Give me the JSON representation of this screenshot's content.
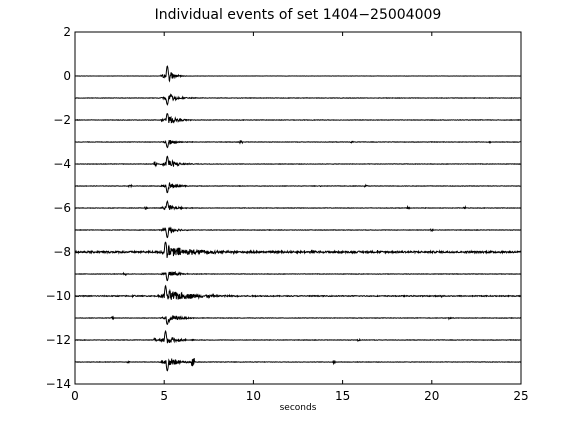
{
  "chart_data": {
    "type": "line",
    "title": "Individual events of set 1404−25004009",
    "xlabel": "seconds",
    "ylabel": "",
    "xlim": [
      0,
      25
    ],
    "ylim": [
      -14,
      2
    ],
    "x_ticks": [
      0,
      5,
      10,
      15,
      20,
      25
    ],
    "y_ticks": [
      2,
      0,
      -2,
      -4,
      -6,
      -8,
      -10,
      -12,
      -14
    ],
    "grid": false,
    "line_color": "#000000",
    "traces": [
      {
        "offset": 0,
        "duration": 25,
        "onset": 5.1,
        "peak": 0.45,
        "noise": 0.005,
        "coda": 0.3,
        "spikes": []
      },
      {
        "offset": -1,
        "duration": 25,
        "onset": 5.1,
        "peak": 0.3,
        "noise": 0.01,
        "coda": 0.5,
        "spikes": []
      },
      {
        "offset": -2,
        "duration": 25,
        "onset": 5.1,
        "peak": 0.3,
        "noise": 0.01,
        "coda": 0.5,
        "spikes": []
      },
      {
        "offset": -3,
        "duration": 25,
        "onset": 5.1,
        "peak": 0.25,
        "noise": 0.01,
        "coda": 0.4,
        "spikes": [
          [
            9.3,
            0.06
          ],
          [
            15.5,
            0.04
          ],
          [
            23.2,
            0.04
          ]
        ]
      },
      {
        "offset": -4,
        "duration": 25,
        "onset": 5.1,
        "peak": 0.35,
        "noise": 0.01,
        "coda": 0.5,
        "spikes": [
          [
            4.5,
            0.12
          ]
        ]
      },
      {
        "offset": -5,
        "duration": 25,
        "onset": 5.1,
        "peak": 0.3,
        "noise": 0.01,
        "coda": 0.4,
        "spikes": [
          [
            3.1,
            0.05
          ],
          [
            13.7,
            0.04
          ],
          [
            16.3,
            0.05
          ]
        ]
      },
      {
        "offset": -6,
        "duration": 25,
        "onset": 5.1,
        "peak": 0.3,
        "noise": 0.01,
        "coda": 0.4,
        "spikes": [
          [
            4.0,
            0.05
          ],
          [
            18.7,
            0.05
          ],
          [
            21.8,
            0.05
          ]
        ]
      },
      {
        "offset": -7,
        "duration": 25,
        "onset": 5.1,
        "peak": 0.35,
        "noise": 0.01,
        "coda": 0.4,
        "spikes": [
          [
            20.0,
            0.06
          ]
        ]
      },
      {
        "offset": -8,
        "duration": 25,
        "onset": 5.0,
        "peak": 0.45,
        "noise": 0.04,
        "coda": 1.5,
        "spikes": [
          [
            13.3,
            0.12
          ],
          [
            17.0,
            0.06
          ]
        ]
      },
      {
        "offset": -9,
        "duration": 25,
        "onset": 5.1,
        "peak": 0.3,
        "noise": 0.01,
        "coda": 0.5,
        "spikes": [
          [
            2.8,
            0.06
          ]
        ]
      },
      {
        "offset": -10,
        "duration": 25,
        "onset": 5.0,
        "peak": 0.45,
        "noise": 0.02,
        "coda": 1.5,
        "spikes": [
          [
            3.3,
            0.04
          ],
          [
            20.5,
            0.04
          ]
        ]
      },
      {
        "offset": -11,
        "duration": 25,
        "onset": 5.1,
        "peak": 0.3,
        "noise": 0.01,
        "coda": 0.6,
        "spikes": [
          [
            2.1,
            0.04
          ],
          [
            21.0,
            0.04
          ]
        ]
      },
      {
        "offset": -12,
        "duration": 25,
        "onset": 5.0,
        "peak": 0.4,
        "noise": 0.01,
        "coda": 0.5,
        "spikes": [
          [
            4.5,
            0.08
          ],
          [
            15.9,
            0.04
          ]
        ]
      },
      {
        "offset": -13,
        "duration": 25,
        "onset": 5.1,
        "peak": 0.4,
        "noise": 0.01,
        "coda": 0.5,
        "spikes": [
          [
            6.6,
            0.18
          ],
          [
            14.5,
            0.08
          ],
          [
            3.0,
            0.04
          ]
        ]
      }
    ]
  }
}
